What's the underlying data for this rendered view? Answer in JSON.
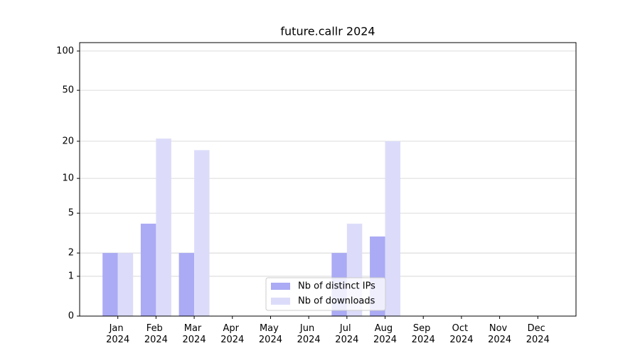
{
  "chart_data": {
    "type": "bar",
    "title": "future.callr 2024",
    "categories": [
      "Jan 2024",
      "Feb 2024",
      "Mar 2024",
      "Apr 2024",
      "May 2024",
      "Jun 2024",
      "Jul 2024",
      "Aug 2024",
      "Sep 2024",
      "Oct 2024",
      "Nov 2024",
      "Dec 2024"
    ],
    "series": [
      {
        "name": "Nb of distinct IPs",
        "color": "#aaaaf5",
        "values": [
          2,
          4,
          2,
          0,
          0,
          0,
          2,
          3,
          0,
          0,
          0,
          0
        ]
      },
      {
        "name": "Nb of downloads",
        "color": "#dcdcfa",
        "values": [
          2,
          21,
          17,
          0,
          0,
          0,
          4,
          20,
          0,
          0,
          0,
          0
        ]
      }
    ],
    "yscale": "log1p",
    "ylim": [
      0,
      116
    ],
    "yticks": [
      0,
      1,
      2,
      5,
      10,
      20,
      50,
      100
    ],
    "grid": true,
    "legend": "lower center"
  }
}
